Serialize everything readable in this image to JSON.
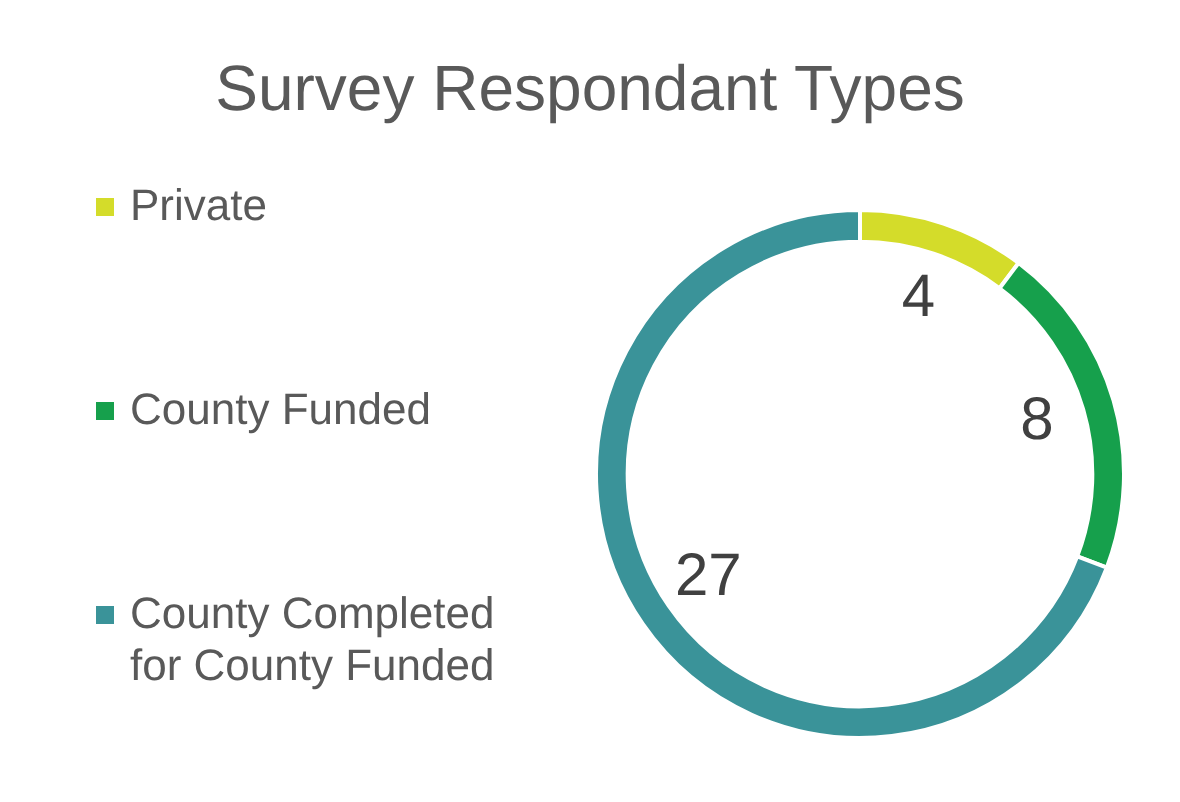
{
  "chart_data": {
    "type": "donut",
    "title": "Survey Respondant Types",
    "categories": [
      "Private",
      "County Funded",
      "County Completed for County Funded"
    ],
    "values": [
      4,
      8,
      27
    ],
    "colors": [
      "#d4dc2a",
      "#16a04c",
      "#3a9399"
    ],
    "data_labels": true,
    "legend": "left"
  }
}
